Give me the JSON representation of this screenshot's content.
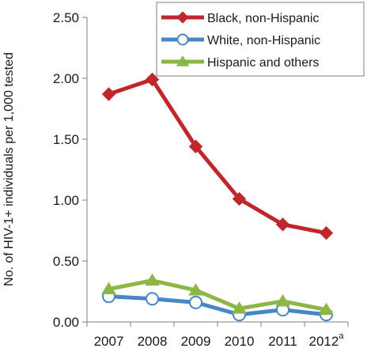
{
  "chart_data": {
    "type": "line",
    "ylabel": "No. of HIV-1+ individuals per 1,000 tested",
    "xlabel": "",
    "title": "",
    "categories": [
      "2007",
      "2008",
      "2009",
      "2010",
      "2011",
      "2012"
    ],
    "last_category_superscript": "a",
    "ylim": [
      0,
      2.5
    ],
    "yticks": [
      "0.00",
      "0.50",
      "1.00",
      "1.50",
      "2.00",
      "2.50"
    ],
    "grid": false,
    "legend_position": "top-right",
    "series": [
      {
        "name": "Black, non-Hispanic",
        "values": [
          1.87,
          1.99,
          1.44,
          1.01,
          0.8,
          0.73
        ],
        "color": "#c0272d",
        "marker": "diamond"
      },
      {
        "name": "White, non-Hispanic",
        "values": [
          0.21,
          0.19,
          0.16,
          0.06,
          0.1,
          0.06
        ],
        "color": "#4a86c5",
        "marker": "circle-open"
      },
      {
        "name": "Hispanic and others",
        "values": [
          0.27,
          0.34,
          0.26,
          0.11,
          0.17,
          0.1
        ],
        "color": "#8db649",
        "marker": "triangle"
      }
    ]
  }
}
